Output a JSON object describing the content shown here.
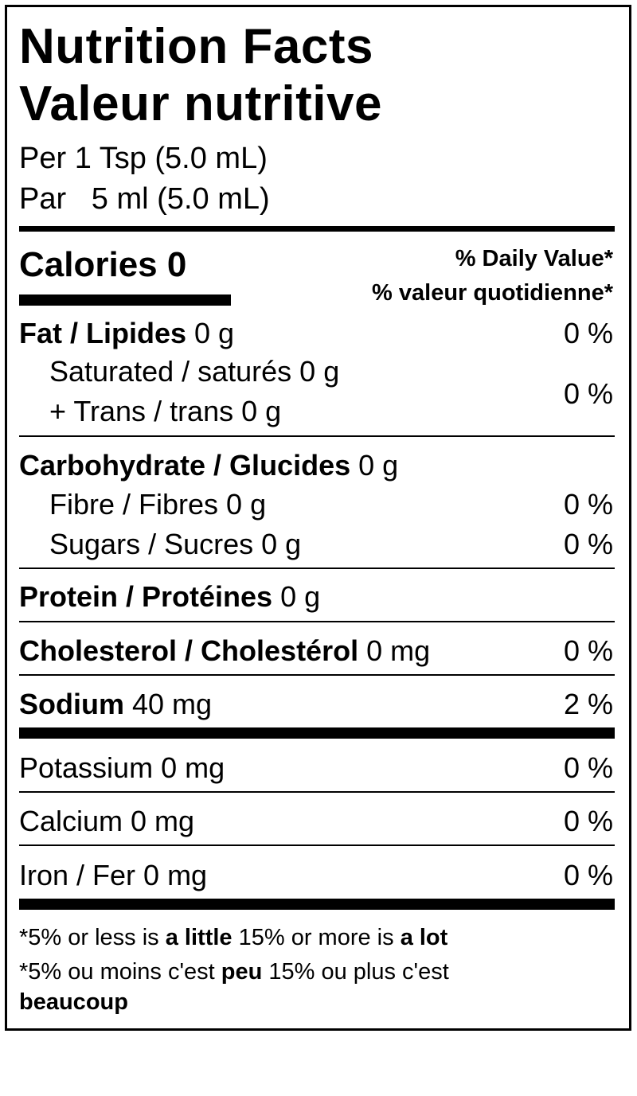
{
  "title_en": "Nutrition Facts",
  "title_fr": "Valeur nutritive",
  "serving_en": "Per 1 Tsp (5.0 mL)",
  "serving_fr": "Par   5 ml (5.0 mL)",
  "calories": "Calories 0",
  "dv_en": "% Daily Value*",
  "dv_fr": "% valeur quotidienne*",
  "rows": {
    "fat": {
      "name": "Fat / Lipides",
      "amount": " 0 g",
      "dv": "0 %"
    },
    "saturated": {
      "name": "Saturated / saturés 0 g"
    },
    "trans": {
      "name": "+ Trans / trans 0 g",
      "dv": "0 %"
    },
    "carb": {
      "name": "Carbohydrate / Glucides",
      "amount": " 0 g"
    },
    "fibre": {
      "name": "Fibre / Fibres 0 g",
      "dv": "0 %"
    },
    "sugars": {
      "name": "Sugars / Sucres 0 g",
      "dv": "0 %"
    },
    "protein": {
      "name": "Protein / Protéines",
      "amount": " 0 g"
    },
    "cholesterol": {
      "name": "Cholesterol / Cholestérol",
      "amount": " 0 mg",
      "dv": "0 %"
    },
    "sodium": {
      "name": "Sodium",
      "amount": " 40 mg",
      "dv": "2 %"
    },
    "potassium": {
      "name": "Potassium 0 mg",
      "dv": "0 %"
    },
    "calcium": {
      "name": "Calcium 0 mg",
      "dv": "0 %"
    },
    "iron": {
      "name": "Iron / Fer 0 mg",
      "dv": "0 %"
    }
  },
  "footnote_en": {
    "a": "*5% or less is ",
    "b": "a little",
    "c": " 15% or more is ",
    "d": "a lot"
  },
  "footnote_fr": {
    "a": "*5% ou moins c'est ",
    "b": "peu",
    "c": " 15% ou plus c'est",
    "d": "beaucoup"
  }
}
